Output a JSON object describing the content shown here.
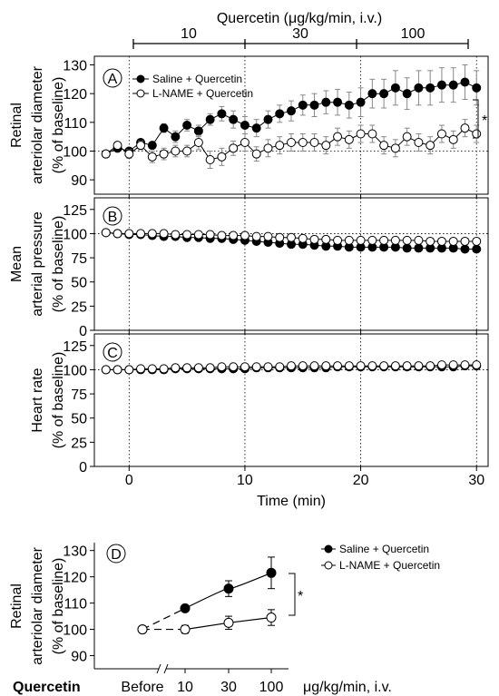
{
  "figure": {
    "dose_header": {
      "title": "Quercetin (μg/kg/min, i.v.)",
      "segments": [
        "10",
        "30",
        "100"
      ]
    },
    "time_axis": {
      "label": "Time (min)",
      "ticks": [
        "0",
        "10",
        "20",
        "30"
      ]
    },
    "significance_mark": "*"
  },
  "chart_data": [
    {
      "type": "line",
      "panel_label": "A",
      "ylabel_line1": "Retinal",
      "ylabel_line2": "arteriolar diameter",
      "ylabel_line3": "(% of baseline)",
      "ylim": [
        85,
        133
      ],
      "yticks": [
        90,
        100,
        110,
        120,
        130
      ],
      "xlim": [
        -3,
        31
      ],
      "x": [
        -2,
        -1,
        0,
        1,
        2,
        3,
        4,
        5,
        6,
        7,
        8,
        9,
        10,
        11,
        12,
        13,
        14,
        15,
        16,
        17,
        18,
        19,
        20,
        21,
        22,
        23,
        24,
        25,
        26,
        27,
        28,
        29,
        30
      ],
      "legend": {
        "position": "top-left"
      },
      "series": [
        {
          "name": "Saline + Quercetin",
          "marker": "filled",
          "values": [
            99,
            101,
            100,
            103,
            102,
            108,
            105,
            109,
            107,
            111,
            113,
            111,
            109,
            108,
            111,
            113,
            114,
            116,
            116,
            117,
            117,
            116,
            117,
            120,
            120,
            122,
            120,
            122,
            122,
            123,
            123,
            124,
            122
          ],
          "errors": [
            1,
            1,
            1,
            1,
            1,
            1.5,
            2,
            2,
            2,
            2,
            2.5,
            3,
            3,
            3,
            3,
            3,
            3.5,
            3.5,
            4,
            4,
            4.5,
            4.5,
            5,
            5,
            5,
            6,
            5.5,
            6,
            6,
            6,
            6,
            6,
            6
          ]
        },
        {
          "name": "L-NAME + Quercetin",
          "marker": "open",
          "values": [
            99,
            102,
            99,
            102,
            98,
            99,
            100,
            100,
            103,
            97,
            98,
            101,
            103,
            99,
            101,
            102,
            103,
            103,
            103,
            102,
            105,
            104,
            106,
            106,
            102,
            101,
            105,
            103,
            102,
            106,
            104,
            108,
            106
          ],
          "errors": [
            1,
            1,
            1.5,
            1.5,
            2,
            2,
            2,
            2,
            2.5,
            3,
            3,
            2.5,
            3,
            2.5,
            3,
            3,
            3,
            3,
            3,
            3,
            3,
            3,
            3,
            3,
            3,
            3,
            3,
            3,
            3,
            3,
            3,
            3,
            3
          ]
        }
      ]
    },
    {
      "type": "line",
      "panel_label": "B",
      "ylabel_line1": "Mean",
      "ylabel_line2": "arterial pressure",
      "ylabel_line3": "(% of baseline)",
      "ylim": [
        0,
        137
      ],
      "yticks": [
        0,
        25,
        50,
        75,
        100,
        125
      ],
      "xlim": [
        -3,
        31
      ],
      "x": [
        -2,
        -1,
        0,
        1,
        2,
        3,
        4,
        5,
        6,
        7,
        8,
        9,
        10,
        11,
        12,
        13,
        14,
        15,
        16,
        17,
        18,
        19,
        20,
        21,
        22,
        23,
        24,
        25,
        26,
        27,
        28,
        29,
        30
      ],
      "series": [
        {
          "name": "Saline + Quercetin",
          "marker": "filled",
          "values": [
            101,
            100,
            99,
            99,
            98,
            97,
            97,
            96,
            96,
            95,
            95,
            94,
            93,
            92,
            91,
            90,
            89,
            89,
            88,
            87,
            87,
            86,
            86,
            86,
            86,
            86,
            85,
            85,
            85,
            85,
            85,
            84,
            84
          ],
          "errors": [
            1,
            1,
            1,
            1,
            1,
            1,
            1,
            1,
            1,
            1,
            1,
            1,
            1,
            1,
            1,
            1,
            1,
            1,
            1,
            1,
            1,
            1,
            1,
            1,
            1,
            1,
            1,
            1,
            1,
            1,
            1,
            1,
            1
          ]
        },
        {
          "name": "L-NAME + Quercetin",
          "marker": "open",
          "values": [
            101,
            100,
            100,
            100,
            100,
            100,
            99,
            99,
            99,
            99,
            98,
            98,
            98,
            97,
            97,
            96,
            96,
            95,
            94,
            94,
            93,
            93,
            93,
            93,
            93,
            93,
            93,
            93,
            92,
            92,
            92,
            92,
            92
          ],
          "errors": [
            1.5,
            1.5,
            1.5,
            1.5,
            1.5,
            1.5,
            2,
            2,
            2,
            2,
            2,
            2,
            2,
            2,
            2,
            2,
            2.5,
            2.5,
            2.5,
            2.5,
            2.5,
            2.5,
            2.5,
            2.5,
            2.5,
            2.5,
            2.5,
            2.5,
            2.5,
            2.5,
            2.5,
            2.5,
            2.5
          ]
        }
      ]
    },
    {
      "type": "line",
      "panel_label": "C",
      "ylabel_line1": "Heart rate",
      "ylabel_line2": "(% of baseline)",
      "ylim": [
        0,
        137
      ],
      "yticks": [
        0,
        25,
        50,
        75,
        100,
        125
      ],
      "xlim": [
        -3,
        31
      ],
      "x": [
        -2,
        -1,
        0,
        1,
        2,
        3,
        4,
        5,
        6,
        7,
        8,
        9,
        10,
        11,
        12,
        13,
        14,
        15,
        16,
        17,
        18,
        19,
        20,
        21,
        22,
        23,
        24,
        25,
        26,
        27,
        28,
        29,
        30
      ],
      "series": [
        {
          "name": "Saline + Quercetin",
          "marker": "filled",
          "values": [
            100,
            100,
            100,
            100,
            100,
            100,
            101,
            101,
            101,
            101,
            101,
            101,
            101,
            102,
            102,
            102,
            102,
            102,
            102,
            102,
            103,
            103,
            103,
            103,
            103,
            103,
            103,
            103,
            103,
            103,
            103,
            104,
            104
          ],
          "errors": [
            1,
            1,
            1,
            1,
            1,
            1,
            1,
            1,
            1,
            1,
            1,
            1,
            1,
            1,
            1,
            1,
            1,
            1,
            1,
            1,
            1,
            1,
            1,
            1,
            1,
            1,
            1,
            1,
            1,
            1,
            1,
            1,
            1
          ]
        },
        {
          "name": "L-NAME + Quercetin",
          "marker": "open",
          "values": [
            100,
            100,
            100,
            101,
            101,
            101,
            102,
            102,
            102,
            102,
            103,
            103,
            103,
            103,
            103,
            103,
            104,
            104,
            104,
            104,
            104,
            104,
            104,
            104,
            104,
            104,
            104,
            104,
            104,
            105,
            105,
            105,
            105
          ],
          "errors": [
            1,
            1,
            1,
            1,
            1,
            1,
            1,
            1,
            1,
            1,
            1,
            1,
            1,
            1,
            1,
            1,
            1,
            1,
            1,
            1,
            1,
            1,
            1,
            1,
            1,
            1,
            1,
            1,
            1,
            1,
            1,
            1,
            1
          ]
        }
      ]
    },
    {
      "type": "line",
      "panel_label": "D",
      "ylabel_line1": "Retinal",
      "ylabel_line2": "arteriolar diameter",
      "ylabel_line3": "(% of baseline)",
      "ylim": [
        85,
        133
      ],
      "yticks": [
        90,
        100,
        110,
        120,
        130
      ],
      "categories": [
        "Before",
        "10",
        "30",
        "100"
      ],
      "xaxis_prefix": "Quercetin",
      "xaxis_unit": "μg/kg/min, i.v.",
      "legend": {
        "position": "outside-right"
      },
      "series": [
        {
          "name": "Saline + Quercetin",
          "marker": "filled",
          "values": [
            100,
            108,
            115.5,
            121.5
          ],
          "errors": [
            0,
            1,
            3,
            6
          ]
        },
        {
          "name": "L-NAME + Quercetin",
          "marker": "open",
          "values": [
            100,
            100,
            102.5,
            104.5
          ],
          "errors": [
            0,
            1.5,
            2.5,
            3
          ]
        }
      ]
    }
  ]
}
